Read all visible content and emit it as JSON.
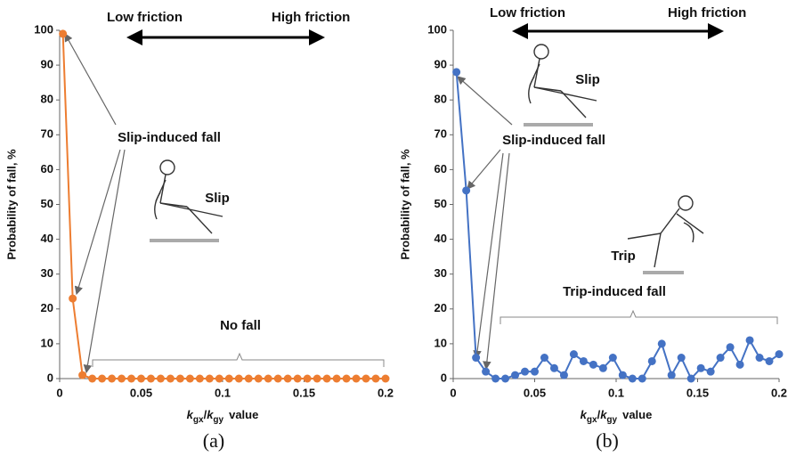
{
  "chart_data": [
    {
      "type": "line",
      "caption": "(a)",
      "y_label": "Probability of fall, %",
      "x_label": [
        "k",
        "gx",
        "/",
        "k",
        "gy",
        "value"
      ],
      "annotations": [
        "Low friction",
        "High friction",
        "Slip-induced fall",
        "No fall",
        "Slip"
      ],
      "x": [
        0.002,
        0.008,
        0.014,
        0.02,
        0.026,
        0.032,
        0.038,
        0.044,
        0.05,
        0.056,
        0.062,
        0.068,
        0.074,
        0.08,
        0.086,
        0.092,
        0.098,
        0.104,
        0.11,
        0.116,
        0.122,
        0.128,
        0.134,
        0.14,
        0.146,
        0.152,
        0.158,
        0.164,
        0.17,
        0.176,
        0.182,
        0.188,
        0.194,
        0.2
      ],
      "series": [
        {
          "color": "#ed7d31",
          "values": [
            99,
            23,
            1,
            0,
            0,
            0,
            0,
            0,
            0,
            0,
            0,
            0,
            0,
            0,
            0,
            0,
            0,
            0,
            0,
            0,
            0,
            0,
            0,
            0,
            0,
            0,
            0,
            0,
            0,
            0,
            0,
            0,
            0,
            0
          ]
        }
      ],
      "xlim": [
        0,
        0.2
      ],
      "xticks": [
        0,
        0.05,
        0.1,
        0.15,
        0.2
      ],
      "ylim": [
        0,
        100
      ],
      "yticks": [
        0,
        10,
        20,
        30,
        40,
        50,
        60,
        70,
        80,
        90,
        100
      ]
    },
    {
      "type": "line",
      "caption": "(b)",
      "y_label": "Probability of fall, %",
      "x_label": [
        "k",
        "gx",
        "/",
        "k",
        "gy",
        "value"
      ],
      "annotations": [
        "Low friction",
        "High friction",
        "Slip-induced fall",
        "Trip-induced fall",
        "Slip",
        "Trip"
      ],
      "x": [
        0.002,
        0.008,
        0.014,
        0.02,
        0.026,
        0.032,
        0.038,
        0.044,
        0.05,
        0.056,
        0.062,
        0.068,
        0.074,
        0.08,
        0.086,
        0.092,
        0.098,
        0.104,
        0.11,
        0.116,
        0.122,
        0.128,
        0.134,
        0.14,
        0.146,
        0.152,
        0.158,
        0.164,
        0.17,
        0.176,
        0.182,
        0.188,
        0.194,
        0.2
      ],
      "series": [
        {
          "color": "#4472c4",
          "values": [
            88,
            54,
            6,
            2,
            0,
            0,
            1,
            2,
            2,
            6,
            3,
            1,
            7,
            5,
            4,
            3,
            6,
            1,
            0,
            0,
            5,
            10,
            1,
            6,
            0,
            3,
            2,
            6,
            9,
            4,
            11,
            6,
            5,
            7
          ]
        }
      ],
      "xlim": [
        0,
        0.2
      ],
      "xticks": [
        0,
        0.05,
        0.1,
        0.15,
        0.2
      ],
      "ylim": [
        0,
        100
      ],
      "yticks": [
        0,
        10,
        20,
        30,
        40,
        50,
        60,
        70,
        80,
        90,
        100
      ]
    }
  ]
}
